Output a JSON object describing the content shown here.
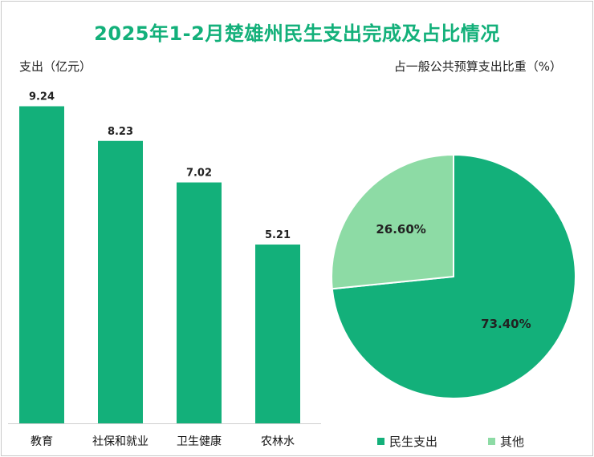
{
  "title": "2025年1-2月楚雄州民生支出完成及占比情况",
  "colors": {
    "title": "#13b07a",
    "primary": "#13b07a",
    "secondary": "#8ddba5"
  },
  "chart_data": [
    {
      "type": "bar",
      "ylabel": "支出（亿元）",
      "categories": [
        "教育",
        "社保和就业",
        "卫生健康",
        "农林水"
      ],
      "values": [
        9.24,
        8.23,
        7.02,
        5.21
      ],
      "data_labels": [
        "9.24",
        "8.23",
        "7.02",
        "5.21"
      ],
      "ylim": [
        0,
        10
      ],
      "grid": false,
      "color": "#13b07a"
    },
    {
      "type": "pie",
      "title": "占一般公共预算支出比重（%）",
      "slices": [
        {
          "name": "民生支出",
          "value": 73.4,
          "label": "73.40%",
          "color": "#13b07a"
        },
        {
          "name": "其他",
          "value": 26.6,
          "label": "26.60%",
          "color": "#8ddba5"
        }
      ],
      "legend": "bottom"
    }
  ]
}
